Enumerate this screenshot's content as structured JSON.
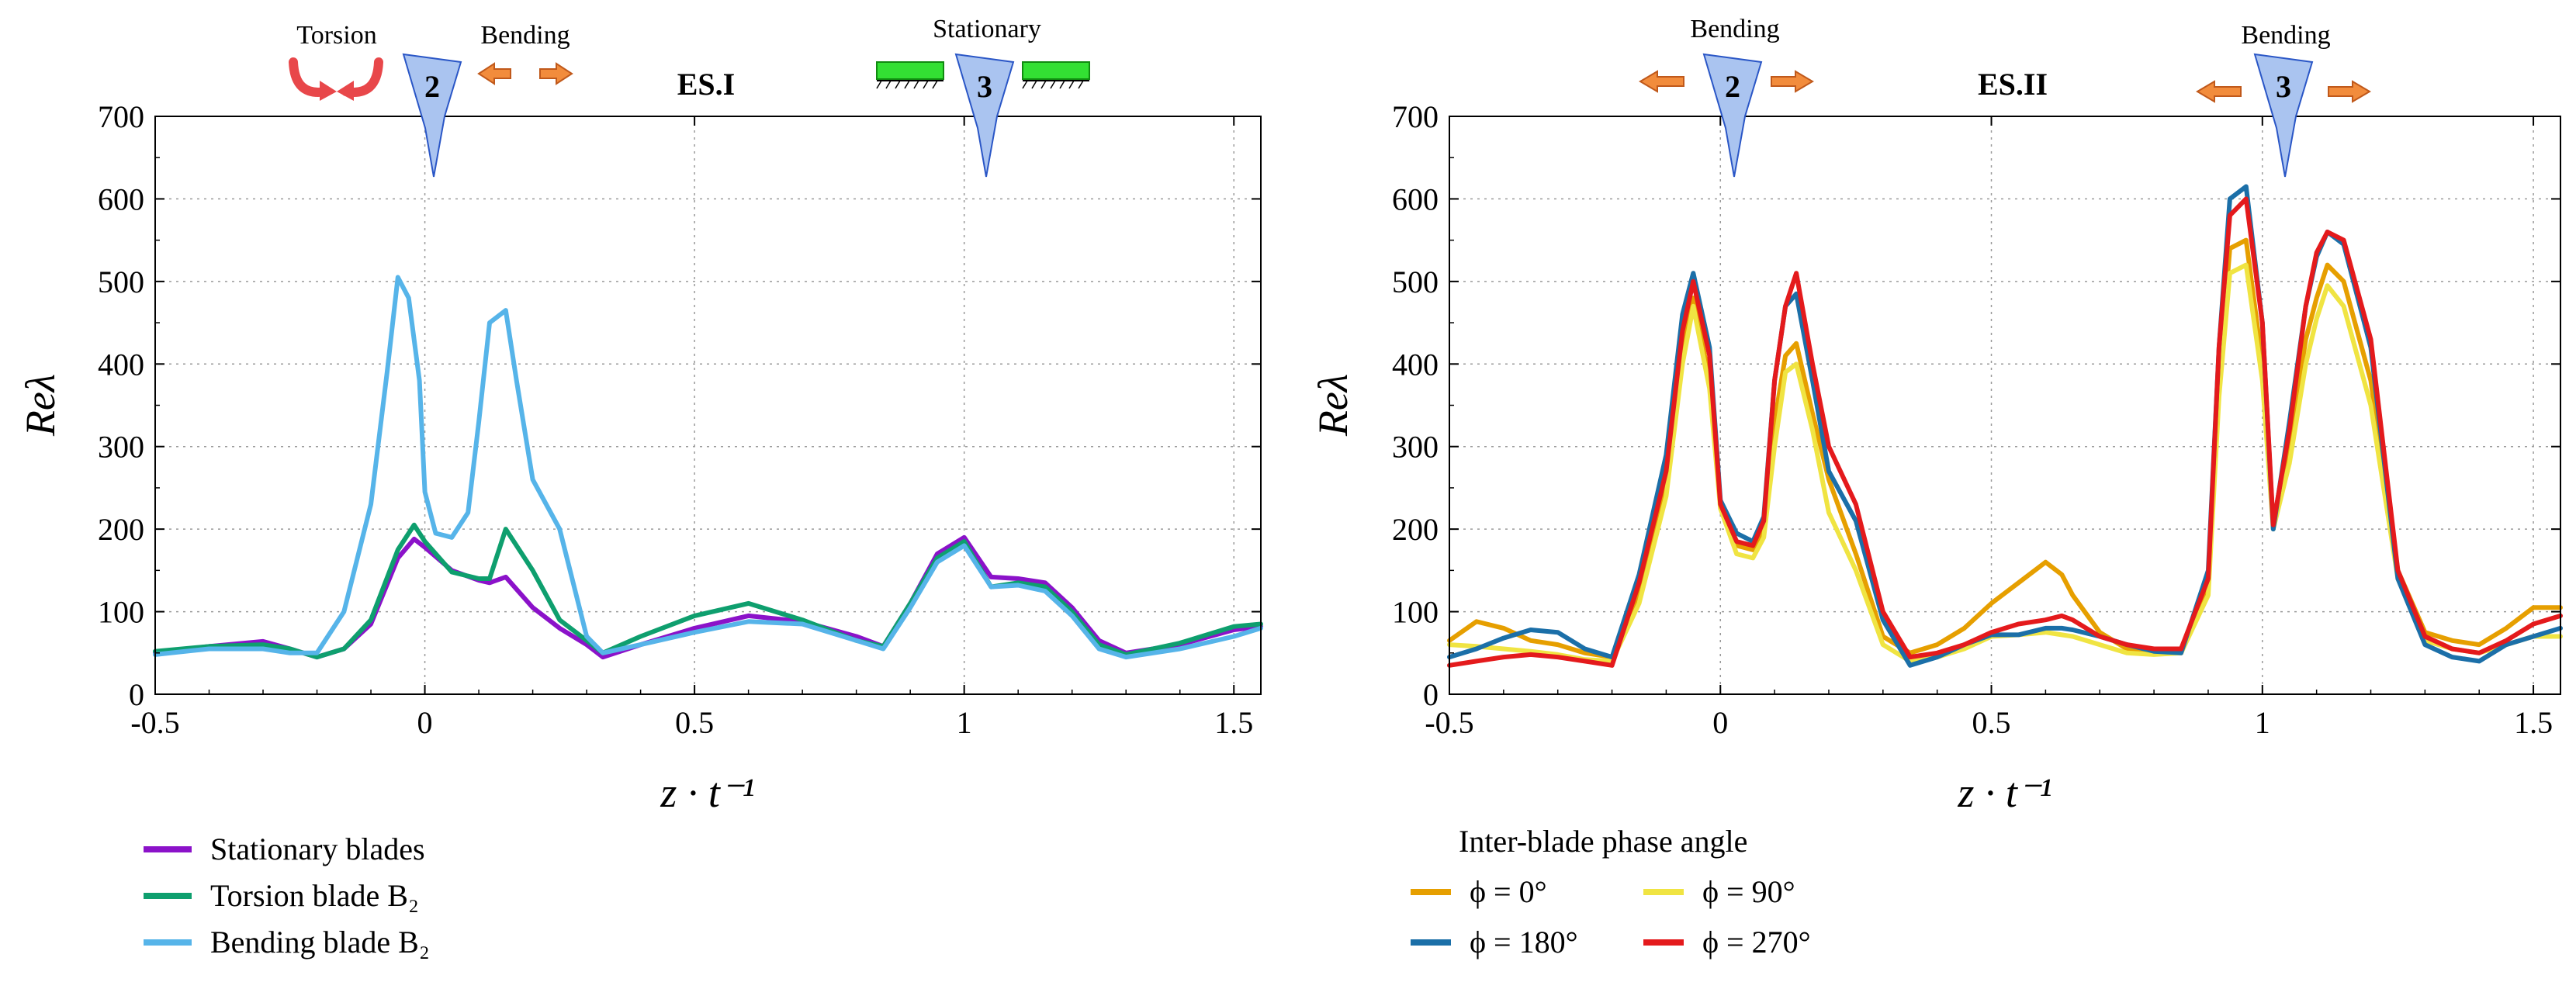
{
  "chart_data": [
    {
      "type": "line",
      "panel_label": "ES.I",
      "xlabel": "z · t⁻¹",
      "ylabel": "Reλ",
      "xlim": [
        -0.5,
        1.55
      ],
      "ylim": [
        0,
        700
      ],
      "xticks": [
        "-0.5",
        "0",
        "0.5",
        "1",
        "1.5"
      ],
      "yticks": [
        "0",
        "100",
        "200",
        "300",
        "400",
        "500",
        "600",
        "700"
      ],
      "grid": true,
      "illustration": {
        "blades": [
          "2",
          "3"
        ],
        "labels": {
          "torsion": "Torsion",
          "bending": "Bending",
          "stationary": "Stationary"
        }
      },
      "legend_title": "",
      "series": [
        {
          "name": "Stationary blades",
          "color": "#8b12c9",
          "x": [
            -0.5,
            -0.4,
            -0.3,
            -0.25,
            -0.2,
            -0.15,
            -0.1,
            -0.05,
            -0.02,
            0,
            0.05,
            0.1,
            0.12,
            0.15,
            0.2,
            0.25,
            0.3,
            0.33,
            0.4,
            0.5,
            0.6,
            0.7,
            0.8,
            0.85,
            0.9,
            0.95,
            1,
            1.05,
            1.1,
            1.15,
            1.2,
            1.25,
            1.3,
            1.4,
            1.5,
            1.55
          ],
          "y": [
            50,
            58,
            64,
            55,
            45,
            55,
            85,
            165,
            188,
            178,
            150,
            138,
            135,
            142,
            105,
            80,
            60,
            45,
            60,
            80,
            95,
            88,
            70,
            58,
            110,
            170,
            190,
            142,
            140,
            135,
            105,
            65,
            50,
            60,
            78,
            82
          ]
        },
        {
          "name": "Torsion blade B₂",
          "color": "#0e9f6e",
          "x": [
            -0.5,
            -0.4,
            -0.3,
            -0.25,
            -0.2,
            -0.15,
            -0.1,
            -0.05,
            -0.02,
            0,
            0.05,
            0.1,
            0.12,
            0.15,
            0.2,
            0.25,
            0.3,
            0.33,
            0.4,
            0.5,
            0.6,
            0.7,
            0.8,
            0.85,
            0.9,
            0.95,
            1,
            1.05,
            1.1,
            1.15,
            1.2,
            1.25,
            1.3,
            1.4,
            1.5,
            1.55
          ],
          "y": [
            52,
            58,
            60,
            55,
            45,
            55,
            90,
            175,
            205,
            185,
            148,
            140,
            140,
            200,
            150,
            90,
            65,
            50,
            70,
            95,
            110,
            90,
            65,
            58,
            110,
            165,
            185,
            130,
            135,
            130,
            100,
            60,
            48,
            62,
            82,
            85
          ]
        },
        {
          "name": "Bending blade B₂",
          "color": "#56b4e9",
          "x": [
            -0.5,
            -0.4,
            -0.3,
            -0.25,
            -0.2,
            -0.15,
            -0.1,
            -0.07,
            -0.05,
            -0.03,
            -0.01,
            0,
            0.02,
            0.05,
            0.08,
            0.1,
            0.12,
            0.15,
            0.17,
            0.2,
            0.25,
            0.3,
            0.33,
            0.4,
            0.5,
            0.6,
            0.7,
            0.8,
            0.85,
            0.9,
            0.95,
            1,
            1.05,
            1.1,
            1.15,
            1.2,
            1.25,
            1.3,
            1.4,
            1.5,
            1.55
          ],
          "y": [
            48,
            55,
            55,
            50,
            50,
            100,
            230,
            390,
            505,
            480,
            380,
            245,
            195,
            190,
            220,
            330,
            450,
            465,
            380,
            260,
            200,
            70,
            50,
            60,
            75,
            88,
            85,
            65,
            55,
            105,
            160,
            180,
            130,
            132,
            125,
            95,
            55,
            45,
            55,
            70,
            80
          ]
        }
      ]
    },
    {
      "type": "line",
      "panel_label": "ES.II",
      "xlabel": "z · t⁻¹",
      "ylabel": "Reλ",
      "xlim": [
        -0.5,
        1.55
      ],
      "ylim": [
        0,
        700
      ],
      "xticks": [
        "-0.5",
        "0",
        "0.5",
        "1",
        "1.5"
      ],
      "yticks": [
        "0",
        "100",
        "200",
        "300",
        "400",
        "500",
        "600",
        "700"
      ],
      "grid": true,
      "illustration": {
        "blades": [
          "2",
          "3"
        ],
        "labels": {
          "bending_left": "Bending",
          "bending_right": "Bending"
        }
      },
      "legend_title": "Inter-blade phase angle",
      "series": [
        {
          "name": "ϕ = 0°",
          "color": "#e69f00",
          "x": [
            -0.5,
            -0.45,
            -0.4,
            -0.35,
            -0.3,
            -0.25,
            -0.2,
            -0.15,
            -0.1,
            -0.07,
            -0.05,
            -0.02,
            0,
            0.03,
            0.06,
            0.08,
            0.1,
            0.12,
            0.14,
            0.17,
            0.2,
            0.25,
            0.3,
            0.35,
            0.4,
            0.45,
            0.5,
            0.55,
            0.6,
            0.63,
            0.65,
            0.7,
            0.75,
            0.8,
            0.85,
            0.9,
            0.92,
            0.94,
            0.97,
            1,
            1.02,
            1.05,
            1.08,
            1.1,
            1.12,
            1.15,
            1.2,
            1.25,
            1.3,
            1.35,
            1.4,
            1.45,
            1.5,
            1.55
          ],
          "y": [
            65,
            88,
            80,
            65,
            60,
            50,
            45,
            120,
            250,
            420,
            480,
            380,
            230,
            180,
            175,
            200,
            330,
            410,
            425,
            340,
            260,
            170,
            70,
            50,
            60,
            80,
            110,
            135,
            160,
            145,
            120,
            75,
            55,
            50,
            50,
            130,
            380,
            540,
            550,
            400,
            205,
            300,
            430,
            480,
            520,
            500,
            380,
            150,
            75,
            65,
            60,
            80,
            105,
            105
          ]
        },
        {
          "name": "ϕ = 90°",
          "color": "#f0e442",
          "x": [
            -0.5,
            -0.45,
            -0.4,
            -0.35,
            -0.3,
            -0.25,
            -0.2,
            -0.15,
            -0.1,
            -0.07,
            -0.05,
            -0.02,
            0,
            0.03,
            0.06,
            0.08,
            0.1,
            0.12,
            0.14,
            0.17,
            0.2,
            0.25,
            0.3,
            0.35,
            0.4,
            0.45,
            0.5,
            0.55,
            0.6,
            0.63,
            0.65,
            0.7,
            0.75,
            0.8,
            0.85,
            0.9,
            0.92,
            0.94,
            0.97,
            1,
            1.02,
            1.05,
            1.08,
            1.1,
            1.12,
            1.15,
            1.2,
            1.25,
            1.3,
            1.35,
            1.4,
            1.45,
            1.5,
            1.55
          ],
          "y": [
            60,
            58,
            55,
            52,
            48,
            42,
            40,
            110,
            240,
            400,
            470,
            370,
            225,
            170,
            165,
            190,
            300,
            390,
            400,
            320,
            220,
            150,
            60,
            40,
            45,
            55,
            70,
            72,
            75,
            72,
            70,
            60,
            50,
            48,
            50,
            120,
            360,
            510,
            520,
            380,
            200,
            280,
            400,
            455,
            495,
            470,
            350,
            140,
            65,
            55,
            50,
            60,
            70,
            70
          ]
        },
        {
          "name": "ϕ = 180°",
          "color": "#1b6fa8",
          "x": [
            -0.5,
            -0.45,
            -0.4,
            -0.35,
            -0.3,
            -0.25,
            -0.2,
            -0.15,
            -0.1,
            -0.07,
            -0.05,
            -0.02,
            0,
            0.03,
            0.06,
            0.08,
            0.1,
            0.12,
            0.14,
            0.17,
            0.2,
            0.25,
            0.3,
            0.35,
            0.4,
            0.45,
            0.5,
            0.55,
            0.6,
            0.63,
            0.65,
            0.7,
            0.75,
            0.8,
            0.85,
            0.9,
            0.92,
            0.94,
            0.97,
            1,
            1.02,
            1.05,
            1.08,
            1.1,
            1.12,
            1.15,
            1.2,
            1.25,
            1.3,
            1.35,
            1.4,
            1.45,
            1.5,
            1.55
          ],
          "y": [
            45,
            55,
            68,
            78,
            75,
            55,
            45,
            145,
            290,
            460,
            510,
            420,
            235,
            195,
            185,
            215,
            380,
            470,
            485,
            380,
            270,
            210,
            90,
            35,
            45,
            60,
            72,
            72,
            80,
            80,
            78,
            70,
            60,
            52,
            50,
            150,
            420,
            600,
            615,
            450,
            200,
            330,
            470,
            530,
            560,
            545,
            420,
            140,
            60,
            45,
            40,
            60,
            70,
            80
          ]
        },
        {
          "name": "ϕ = 270°",
          "color": "#e41a1c",
          "x": [
            -0.5,
            -0.45,
            -0.4,
            -0.35,
            -0.3,
            -0.25,
            -0.2,
            -0.15,
            -0.1,
            -0.07,
            -0.05,
            -0.02,
            0,
            0.03,
            0.06,
            0.08,
            0.1,
            0.12,
            0.14,
            0.17,
            0.2,
            0.25,
            0.3,
            0.35,
            0.4,
            0.45,
            0.5,
            0.55,
            0.6,
            0.63,
            0.65,
            0.7,
            0.75,
            0.8,
            0.85,
            0.9,
            0.92,
            0.94,
            0.97,
            1,
            1.02,
            1.05,
            1.08,
            1.1,
            1.12,
            1.15,
            1.2,
            1.25,
            1.3,
            1.35,
            1.4,
            1.45,
            1.5,
            1.55
          ],
          "y": [
            35,
            40,
            45,
            48,
            45,
            40,
            35,
            135,
            270,
            440,
            500,
            410,
            230,
            185,
            180,
            210,
            380,
            470,
            510,
            400,
            300,
            230,
            100,
            45,
            50,
            60,
            75,
            85,
            90,
            95,
            90,
            70,
            60,
            55,
            55,
            140,
            420,
            580,
            600,
            450,
            205,
            320,
            470,
            535,
            560,
            550,
            430,
            150,
            70,
            55,
            50,
            65,
            85,
            95
          ]
        }
      ]
    }
  ]
}
